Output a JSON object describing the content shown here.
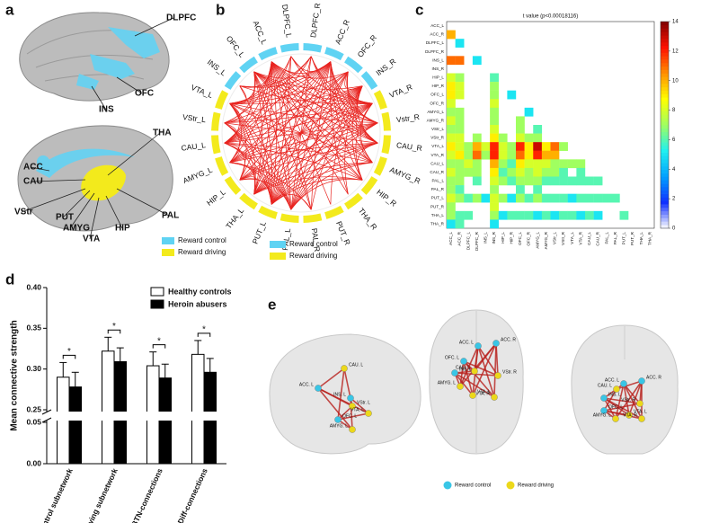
{
  "panel_a": {
    "letter": "a",
    "labels": [
      "DLPFC",
      "OFC",
      "INS",
      "THA",
      "ACC",
      "CAU",
      "VStr",
      "PUT",
      "AMYG",
      "VTA",
      "HIP",
      "PAL"
    ],
    "legend": [
      {
        "label": "Reward control",
        "color": "#5fd3f3"
      },
      {
        "label": "Reward driving",
        "color": "#f3ea1c"
      }
    ]
  },
  "chart_data": [
    {
      "type": "chord",
      "letter": "b",
      "nodes": [
        {
          "label": "DLPFC_L",
          "group": 0
        },
        {
          "label": "DLPFC_R",
          "group": 0
        },
        {
          "label": "ACC_R",
          "group": 0
        },
        {
          "label": "OFC_R",
          "group": 0
        },
        {
          "label": "INS_R",
          "group": 0
        },
        {
          "label": "VTA_R",
          "group": 1
        },
        {
          "label": "Vstr_R",
          "group": 1
        },
        {
          "label": "CAU_R",
          "group": 1
        },
        {
          "label": "AMYG_R",
          "group": 1
        },
        {
          "label": "HIP_R",
          "group": 1
        },
        {
          "label": "THA_R",
          "group": 1
        },
        {
          "label": "PUT_R",
          "group": 1
        },
        {
          "label": "PAL_R",
          "group": 1
        },
        {
          "label": "PAL_L",
          "group": 1
        },
        {
          "label": "PUT_L",
          "group": 1
        },
        {
          "label": "THA_L",
          "group": 1
        },
        {
          "label": "HIP_L",
          "group": 1
        },
        {
          "label": "AMYG_L",
          "group": 1
        },
        {
          "label": "CAU_L",
          "group": 1
        },
        {
          "label": "VStr_L",
          "group": 1
        },
        {
          "label": "VTA_L",
          "group": 1
        },
        {
          "label": "INS_L",
          "group": 0
        },
        {
          "label": "OFC_L",
          "group": 0
        },
        {
          "label": "ACC_L",
          "group": 0
        }
      ],
      "edge_color": "#e8231f",
      "legend": [
        {
          "label": "Reward control",
          "color": "#5fd3f3"
        },
        {
          "label": "Reward driving",
          "color": "#f3ea1c"
        }
      ]
    },
    {
      "type": "heatmap",
      "letter": "c",
      "title": "t value (p<0.00018116)",
      "y_labels": [
        "ACC_L",
        "ACC_R",
        "DLPFC_L",
        "DLPFC_R",
        "INS_L",
        "INS_R",
        "HIP_L",
        "HIP_R",
        "OFC_L",
        "OFC_R",
        "AMYG_L",
        "AMYG_R",
        "VStr_L",
        "VStr_R",
        "VTA_L",
        "VTA_R",
        "CAU_L",
        "CAU_R",
        "PAL_L",
        "PAL_R",
        "PUT_L",
        "PUT_R",
        "THA_L",
        "THA_R"
      ],
      "x_labels": [
        "ACC_L",
        "ACC_R",
        "DLPFC_L",
        "DLPFC_R",
        "INS_L",
        "INS_R",
        "HIP_L",
        "HIP_R",
        "OFC_L",
        "OFC_R",
        "AMYG_L",
        "AMYG_R",
        "VStr_L",
        "VStr_R",
        "VTA_L",
        "VTA_R",
        "CAU_L",
        "CAU_R",
        "PAL_L",
        "PAL_R",
        "PUT_L",
        "PUT_R",
        "THA_L",
        "THA_R"
      ],
      "values": [
        [],
        [
          10
        ],
        [
          null,
          5
        ],
        [
          null,
          null,
          null
        ],
        [
          11,
          11,
          null,
          5
        ],
        [
          null,
          null,
          null,
          null,
          null
        ],
        [
          8,
          7,
          null,
          null,
          null,
          6
        ],
        [
          9,
          8,
          null,
          null,
          null,
          7,
          null
        ],
        [
          9,
          8,
          null,
          null,
          null,
          7,
          null,
          5
        ],
        [
          8,
          null,
          null,
          null,
          null,
          8,
          null,
          null,
          null
        ],
        [
          7,
          7,
          null,
          null,
          null,
          7,
          null,
          null,
          null,
          5
        ],
        [
          8,
          7,
          null,
          null,
          null,
          7,
          null,
          null,
          7,
          null,
          null
        ],
        [
          7,
          7,
          null,
          null,
          null,
          8,
          null,
          null,
          7,
          null,
          6,
          null
        ],
        [
          8,
          8,
          null,
          7,
          null,
          9,
          7,
          null,
          8,
          7,
          7,
          null,
          null
        ],
        [
          9,
          8,
          7,
          10,
          8,
          12,
          8,
          7,
          12,
          9,
          13,
          9,
          11,
          7
        ],
        [
          8,
          9,
          7,
          11,
          7,
          12,
          8,
          7,
          11,
          9,
          12,
          10,
          10,
          null,
          null
        ],
        [
          7,
          7,
          8,
          7,
          null,
          10,
          7,
          6,
          9,
          8,
          8,
          8,
          7,
          7,
          7,
          7
        ],
        [
          8,
          7,
          7,
          7,
          null,
          9,
          6,
          7,
          8,
          7,
          8,
          7,
          7,
          6,
          null,
          6,
          null
        ],
        [
          7,
          7,
          null,
          6,
          null,
          8,
          7,
          6,
          7,
          7,
          7,
          6,
          6,
          6,
          6,
          6,
          6,
          6
        ],
        [
          7,
          6,
          null,
          null,
          null,
          7,
          null,
          null,
          6,
          null,
          6,
          null,
          null,
          null,
          null,
          null,
          null,
          null,
          null
        ],
        [
          8,
          7,
          6,
          7,
          5,
          8,
          7,
          5,
          7,
          6,
          7,
          6,
          6,
          6,
          5,
          6,
          6,
          6,
          6,
          6
        ],
        [
          7,
          null,
          null,
          null,
          null,
          8,
          null,
          null,
          null,
          null,
          null,
          null,
          null,
          null,
          null,
          null,
          null,
          null,
          null,
          null,
          null
        ],
        [
          7,
          6,
          6,
          null,
          null,
          7,
          5,
          6,
          6,
          6,
          5,
          6,
          5,
          6,
          6,
          5,
          6,
          5,
          null,
          null,
          6,
          null
        ],
        [
          5,
          6,
          null,
          null,
          null,
          5,
          null,
          null,
          null,
          null,
          null,
          null,
          null,
          null,
          null,
          null,
          null,
          null,
          null,
          null,
          null,
          null,
          null
        ]
      ],
      "clim": [
        0,
        14
      ],
      "cticks": [
        0,
        2,
        4,
        6,
        8,
        10,
        12,
        14
      ],
      "colormap": [
        "#ffffff",
        "#1030ff",
        "#00a0ff",
        "#20f0f0",
        "#a0ff60",
        "#ffff00",
        "#ff9000",
        "#ff1000",
        "#800000"
      ]
    },
    {
      "type": "bar",
      "letter": "d",
      "ylabel": "Mean connective strength",
      "categories": [
        "Control subnetwork",
        "Driving subnetwork",
        "BTN-connections",
        "Diff-connections"
      ],
      "series": [
        {
          "name": "Healthy controls",
          "color": "#ffffff",
          "values": [
            0.29,
            0.322,
            0.304,
            0.318
          ],
          "errors": [
            0.018,
            0.017,
            0.017,
            0.017
          ]
        },
        {
          "name": "Heroin abusers",
          "color": "#000000",
          "values": [
            0.278,
            0.309,
            0.289,
            0.296
          ],
          "errors": [
            0.018,
            0.017,
            0.017,
            0.017
          ]
        }
      ],
      "significance": [
        "*",
        "*",
        "*",
        "*"
      ],
      "ylim": [
        0,
        0.4
      ],
      "axis_break": [
        0.05,
        0.25
      ],
      "yticks": [
        {
          "value": 0,
          "label": "0.00"
        },
        {
          "value": 0.05,
          "label": "0.05"
        },
        {
          "value": 0.25,
          "label": "0.25"
        },
        {
          "value": 0.3,
          "label": "0.30"
        },
        {
          "value": 0.35,
          "label": "0.35"
        },
        {
          "value": 0.4,
          "label": "0.40"
        }
      ]
    }
  ],
  "panel_e": {
    "letter": "e",
    "views": [
      {
        "labels": [
          "ACC. L",
          "CAU. L",
          "INS. L",
          "VStr. L",
          "VTA. L",
          "OFC. L",
          "AMYG. L"
        ],
        "groups": [
          0,
          1,
          0,
          1,
          1,
          0,
          1
        ]
      },
      {
        "labels": [
          "ACC. L",
          "ACC. R",
          "OFC. L",
          "INS. L",
          "CAU. L",
          "VStr. R",
          "AMYG. L",
          "VTA. L",
          "VTA. R"
        ],
        "groups": [
          0,
          0,
          0,
          0,
          1,
          1,
          1,
          1,
          1
        ]
      },
      {
        "labels": [
          "ACC. L",
          "ACC. R",
          "CAU. L",
          "INS. L",
          "VStr. R",
          "OFC. L",
          "AMYG. L",
          "VTA. L",
          "VTA. R"
        ],
        "groups": [
          0,
          0,
          1,
          0,
          1,
          0,
          1,
          1,
          1
        ]
      }
    ],
    "legend": [
      {
        "label": "Reward control",
        "color": "#39c6e6"
      },
      {
        "label": "Reward driving",
        "color": "#ecd81a"
      }
    ]
  }
}
